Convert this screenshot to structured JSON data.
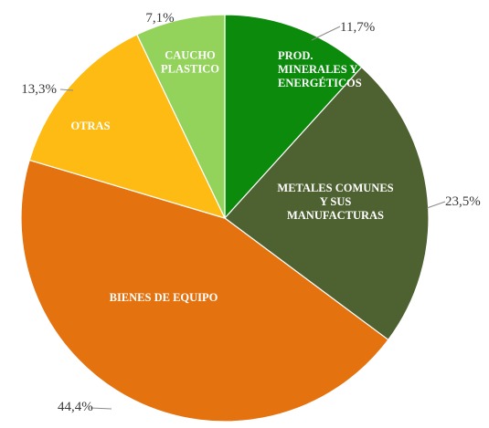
{
  "chart_data": {
    "type": "pie",
    "start_angle_deg": 0,
    "direction": "clockwise",
    "slices": [
      {
        "name": "PROD. MINERALES Y ENERGÉTICOS",
        "label_lines": [
          "PROD.",
          "MINERALES Y",
          "ENERGÉTICOS"
        ],
        "value": 11.7,
        "display": "11,7%",
        "color": "#0b8a0b"
      },
      {
        "name": "METALES COMUNES Y SUS MANUFACTURAS",
        "label_lines": [
          "METALES COMUNES",
          "Y SUS",
          "MANUFACTURAS"
        ],
        "value": 23.5,
        "display": "23,5%",
        "color": "#4e6130"
      },
      {
        "name": "BIENES DE EQUIPO",
        "label_lines": [
          "BIENES DE EQUIPO"
        ],
        "value": 44.4,
        "display": "44,4%",
        "color": "#e3720f"
      },
      {
        "name": "OTRAS",
        "label_lines": [
          "OTRAS"
        ],
        "value": 13.3,
        "display": "13,3%",
        "color": "#fdbb14"
      },
      {
        "name": "CAUCHO PLASTICO",
        "label_lines": [
          "CAUCHO",
          "PLASTICO"
        ],
        "value": 7.1,
        "display": "7,1%",
        "color": "#93d35c"
      }
    ]
  }
}
